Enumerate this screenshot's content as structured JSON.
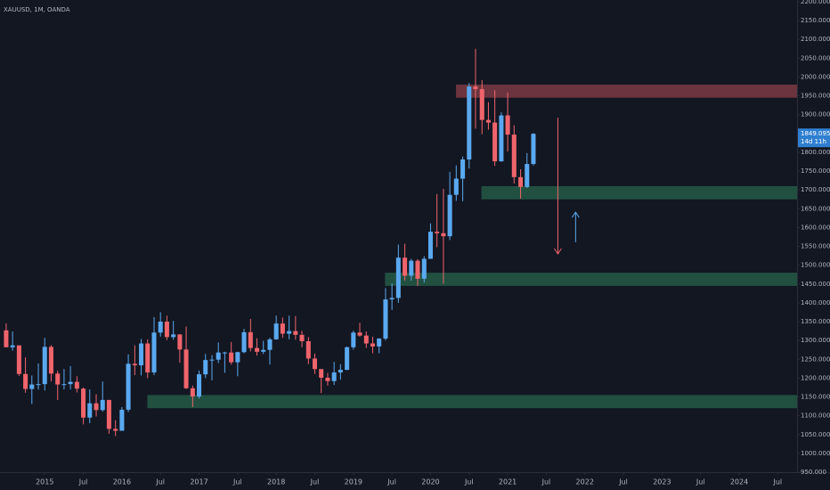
{
  "chart_data": {
    "type": "candlestick",
    "title": "XAUUSD, 1M, OANDA",
    "up_color": "#5aa9f0",
    "down_color": "#f0646c",
    "background": "#131722",
    "grid": false,
    "x": [
      2014.5,
      2014.583,
      2014.667,
      2014.75,
      2014.833,
      2014.917,
      2015,
      2015.083,
      2015.167,
      2015.25,
      2015.333,
      2015.417,
      2015.5,
      2015.583,
      2015.667,
      2015.75,
      2015.833,
      2015.917,
      2016,
      2016.083,
      2016.167,
      2016.25,
      2016.333,
      2016.417,
      2016.5,
      2016.583,
      2016.667,
      2016.75,
      2016.833,
      2016.917,
      2017,
      2017.083,
      2017.167,
      2017.25,
      2017.333,
      2017.417,
      2017.5,
      2017.583,
      2017.667,
      2017.75,
      2017.833,
      2017.917,
      2018,
      2018.083,
      2018.167,
      2018.25,
      2018.333,
      2018.417,
      2018.5,
      2018.583,
      2018.667,
      2018.75,
      2018.833,
      2018.917,
      2019,
      2019.083,
      2019.167,
      2019.25,
      2019.333,
      2019.417,
      2019.5,
      2019.583,
      2019.667,
      2019.75,
      2019.833,
      2019.917,
      2020,
      2020.083,
      2020.167,
      2020.25,
      2020.333,
      2020.417,
      2020.5,
      2020.583,
      2020.667,
      2020.75,
      2020.833,
      2020.917,
      2021,
      2021.083,
      2021.167,
      2021.25,
      2021.333
    ],
    "open": [
      1327,
      1282,
      1287,
      1211,
      1171,
      1183,
      1184,
      1283,
      1212,
      1183,
      1184,
      1190,
      1172,
      1095,
      1133,
      1115,
      1142,
      1065,
      1060,
      1116,
      1238,
      1234,
      1292,
      1215,
      1321,
      1350,
      1309,
      1316,
      1276,
      1173,
      1151,
      1210,
      1248,
      1249,
      1268,
      1268,
      1242,
      1269,
      1322,
      1280,
      1270,
      1275,
      1303,
      1345,
      1318,
      1325,
      1315,
      1298,
      1252,
      1224,
      1201,
      1192,
      1215,
      1222,
      1282,
      1321,
      1313,
      1292,
      1284,
      1305,
      1409,
      1413,
      1520,
      1472,
      1512,
      1464,
      1517,
      1589,
      1585,
      1577,
      1687,
      1730,
      1781,
      1975,
      1968,
      1886,
      1879,
      1776,
      1898,
      1847,
      1734,
      1708,
      1769
    ],
    "high": [
      1345,
      1324,
      1287,
      1255,
      1207,
      1239,
      1307,
      1288,
      1220,
      1224,
      1232,
      1205,
      1175,
      1170,
      1157,
      1191,
      1142,
      1088,
      1123,
      1263,
      1287,
      1304,
      1303,
      1362,
      1375,
      1366,
      1352,
      1317,
      1337,
      1180,
      1220,
      1264,
      1261,
      1295,
      1270,
      1296,
      1270,
      1331,
      1357,
      1306,
      1299,
      1307,
      1366,
      1361,
      1366,
      1365,
      1326,
      1309,
      1265,
      1220,
      1214,
      1243,
      1237,
      1284,
      1326,
      1347,
      1324,
      1310,
      1306,
      1439,
      1452,
      1555,
      1557,
      1517,
      1516,
      1524,
      1611,
      1689,
      1703,
      1748,
      1765,
      1789,
      1984,
      2075,
      1992,
      1933,
      1965,
      1906,
      1959,
      1872,
      1755,
      1798,
      1851
    ],
    "low": [
      1282,
      1273,
      1206,
      1161,
      1131,
      1170,
      1167,
      1191,
      1142,
      1170,
      1170,
      1162,
      1077,
      1080,
      1098,
      1111,
      1052,
      1046,
      1062,
      1110,
      1208,
      1207,
      1200,
      1208,
      1310,
      1301,
      1302,
      1241,
      1171,
      1123,
      1146,
      1200,
      1194,
      1240,
      1214,
      1236,
      1205,
      1266,
      1271,
      1260,
      1264,
      1236,
      1302,
      1307,
      1303,
      1302,
      1282,
      1237,
      1211,
      1160,
      1180,
      1182,
      1196,
      1221,
      1276,
      1310,
      1280,
      1266,
      1266,
      1300,
      1381,
      1400,
      1459,
      1459,
      1445,
      1454,
      1517,
      1548,
      1451,
      1567,
      1671,
      1670,
      1757,
      1863,
      1848,
      1860,
      1764,
      1775,
      1802,
      1717,
      1677,
      1705,
      1765
    ],
    "close": [
      1282,
      1287,
      1211,
      1171,
      1183,
      1184,
      1283,
      1212,
      1183,
      1184,
      1190,
      1172,
      1095,
      1133,
      1115,
      1142,
      1065,
      1060,
      1116,
      1238,
      1234,
      1292,
      1215,
      1321,
      1350,
      1309,
      1316,
      1276,
      1173,
      1151,
      1210,
      1248,
      1249,
      1268,
      1268,
      1242,
      1269,
      1322,
      1280,
      1270,
      1275,
      1303,
      1345,
      1318,
      1325,
      1315,
      1298,
      1252,
      1224,
      1201,
      1192,
      1215,
      1222,
      1282,
      1321,
      1313,
      1292,
      1284,
      1305,
      1409,
      1413,
      1520,
      1472,
      1512,
      1464,
      1517,
      1589,
      1585,
      1577,
      1687,
      1730,
      1781,
      1975,
      1968,
      1886,
      1879,
      1776,
      1898,
      1847,
      1734,
      1708,
      1769,
      1849.095
    ],
    "last_price": 1849.095,
    "countdown": "14d 11h",
    "zones": [
      {
        "start": 2020.33,
        "low": 1945,
        "high": 1980,
        "color": "#7d3944"
      },
      {
        "start": 2020.66,
        "low": 1675,
        "high": 1710,
        "color": "#245a45"
      },
      {
        "start": 2019.41,
        "low": 1445,
        "high": 1480,
        "color": "#245a45"
      },
      {
        "start": 2016.33,
        "low": 1120,
        "high": 1155,
        "color": "#245a45"
      }
    ],
    "arrows": [
      {
        "x": 2021.65,
        "from": 1892,
        "to": 1530,
        "color": "#f0646c"
      },
      {
        "x": 2021.88,
        "from": 1561,
        "to": 1641,
        "color": "#5aa9f0"
      }
    ],
    "xlim": [
      2014.42,
      2024.75
    ],
    "ylim": [
      950,
      2204.7
    ],
    "xticks": [
      2015,
      {
        "value": 2015.5,
        "label": "Jul"
      },
      2016,
      {
        "value": 2016.5,
        "label": "Jul"
      },
      2017,
      {
        "value": 2017.5,
        "label": "Jul"
      },
      2018,
      {
        "value": 2018.5,
        "label": "Jul"
      },
      2019,
      {
        "value": 2019.5,
        "label": "Jul"
      },
      2020,
      {
        "value": 2020.5,
        "label": "Jul"
      },
      2021,
      {
        "value": 2021.5,
        "label": "Jul"
      },
      2022,
      {
        "value": 2022.5,
        "label": "Jul"
      },
      2023,
      {
        "value": 2023.5,
        "label": "Jul"
      },
      2024,
      {
        "value": 2024.5,
        "label": "Jul"
      }
    ],
    "yticks": [
      {
        "value": 950,
        "label": "950.000"
      },
      {
        "value": 1000,
        "label": "1000.000"
      },
      {
        "value": 1050,
        "label": "1050.000"
      },
      {
        "value": 1100,
        "label": "1100.000"
      },
      {
        "value": 1150,
        "label": "1150.000"
      },
      {
        "value": 1200,
        "label": "1200.000"
      },
      {
        "value": 1250,
        "label": "1250.000"
      },
      {
        "value": 1300,
        "label": "1300.000"
      },
      {
        "value": 1350,
        "label": "1350.000"
      },
      {
        "value": 1400,
        "label": "1400.000"
      },
      {
        "value": 1450,
        "label": "1450.000"
      },
      {
        "value": 1500,
        "label": "1500.000"
      },
      {
        "value": 1550,
        "label": "1550.000"
      },
      {
        "value": 1600,
        "label": "1600.000"
      },
      {
        "value": 1650,
        "label": "1650.000"
      },
      {
        "value": 1700,
        "label": "1700.000"
      },
      {
        "value": 1750,
        "label": "1750.000"
      },
      {
        "value": 1800,
        "label": "1800.000"
      },
      {
        "value": 1850,
        "label": "1850.000"
      },
      {
        "value": 1900,
        "label": "1900.000"
      },
      {
        "value": 1950,
        "label": "1950.000"
      },
      {
        "value": 2000,
        "label": "2000.000"
      },
      {
        "value": 2050,
        "label": "2050.000"
      },
      {
        "value": 2100,
        "label": "2100.000"
      },
      {
        "value": 2150,
        "label": "2150.000"
      },
      {
        "value": 2200,
        "label": "2200.000"
      }
    ]
  }
}
